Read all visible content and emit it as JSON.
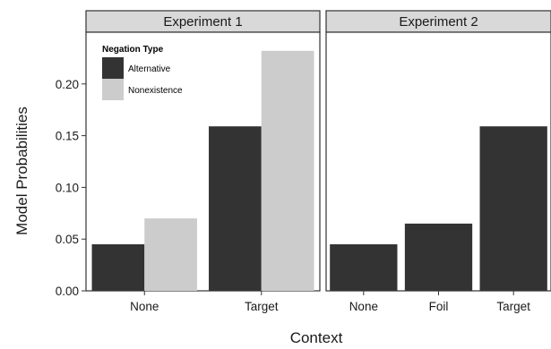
{
  "chart_data": {
    "type": "bar",
    "xlabel": "Context",
    "ylabel": "Model Probabilities",
    "ylim": [
      0,
      0.25
    ],
    "yticks": [
      0.0,
      0.05,
      0.1,
      0.15,
      0.2
    ],
    "ytick_labels": [
      "0.00",
      "0.05",
      "0.10",
      "0.15",
      "0.20"
    ],
    "legend": {
      "title": "Negation Type",
      "placement": "top-left",
      "entries": [
        {
          "name": "Alternative",
          "color": "#333333"
        },
        {
          "name": "Nonexistence",
          "color": "#cccccc"
        }
      ]
    },
    "panels": [
      {
        "title": "Experiment 1",
        "categories": [
          "None",
          "Target"
        ],
        "series": [
          {
            "name": "Alternative",
            "color": "#333333",
            "values": [
              0.045,
              0.159
            ]
          },
          {
            "name": "Nonexistence",
            "color": "#cccccc",
            "values": [
              0.07,
              0.232
            ]
          }
        ]
      },
      {
        "title": "Experiment 2",
        "categories": [
          "None",
          "Foil",
          "Target"
        ],
        "series": [
          {
            "name": "Alternative",
            "color": "#333333",
            "values": [
              0.045,
              0.065,
              0.159
            ]
          }
        ]
      }
    ]
  }
}
